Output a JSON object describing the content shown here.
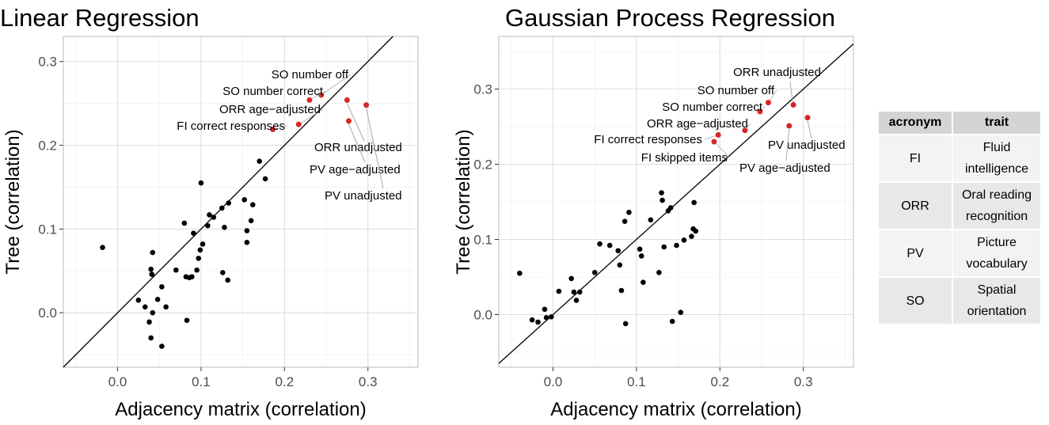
{
  "chart_data": [
    {
      "type": "scatter",
      "title": "Linear Regression",
      "xlabel": "Adjacency matrix (correlation)",
      "ylabel": "Tree (correlation)",
      "xlim": [
        -0.065,
        0.36
      ],
      "ylim": [
        -0.065,
        0.33
      ],
      "xticks": [
        "0.0",
        "0.1",
        "0.2",
        "0.3"
      ],
      "xtick_values": [
        0,
        0.1,
        0.2,
        0.3
      ],
      "yticks": [
        "0.0",
        "0.1",
        "0.2",
        "0.3"
      ],
      "ytick_values": [
        0,
        0.1,
        0.2,
        0.3
      ],
      "reference_line": "y = x",
      "points": [
        [
          -0.018,
          0.078
        ],
        [
          0.025,
          0.015
        ],
        [
          0.033,
          0.007
        ],
        [
          0.038,
          -0.011
        ],
        [
          0.04,
          0.052
        ],
        [
          0.041,
          0.046
        ],
        [
          0.04,
          -0.03
        ],
        [
          0.042,
          0.0
        ],
        [
          0.042,
          0.072
        ],
        [
          0.048,
          0.016
        ],
        [
          0.053,
          0.031
        ],
        [
          0.053,
          -0.04
        ],
        [
          0.058,
          0.007
        ],
        [
          0.07,
          0.051
        ],
        [
          0.08,
          0.107
        ],
        [
          0.082,
          0.043
        ],
        [
          0.083,
          -0.009
        ],
        [
          0.086,
          0.042
        ],
        [
          0.089,
          0.043
        ],
        [
          0.091,
          0.095
        ],
        [
          0.095,
          0.051
        ],
        [
          0.097,
          0.065
        ],
        [
          0.099,
          0.075
        ],
        [
          0.1,
          0.155
        ],
        [
          0.102,
          0.082
        ],
        [
          0.108,
          0.104
        ],
        [
          0.11,
          0.117
        ],
        [
          0.115,
          0.114
        ],
        [
          0.125,
          0.125
        ],
        [
          0.126,
          0.048
        ],
        [
          0.128,
          0.102
        ],
        [
          0.132,
          0.039
        ],
        [
          0.133,
          0.131
        ],
        [
          0.152,
          0.135
        ],
        [
          0.155,
          0.098
        ],
        [
          0.155,
          0.084
        ],
        [
          0.16,
          0.11
        ],
        [
          0.162,
          0.129
        ],
        [
          0.17,
          0.181
        ],
        [
          0.177,
          0.16
        ]
      ],
      "highlight_color": "#d62728",
      "highlighted": [
        {
          "label": "SO number off",
          "x": 0.244,
          "y": 0.26
        },
        {
          "label": "SO number correct",
          "x": 0.23,
          "y": 0.254
        },
        {
          "label": "ORR age−adjusted",
          "x": 0.217,
          "y": 0.225
        },
        {
          "label": "FI correct responses",
          "x": 0.186,
          "y": 0.219
        },
        {
          "label": "ORR unadjusted",
          "x": 0.275,
          "y": 0.254
        },
        {
          "label": "PV age−adjusted",
          "x": 0.277,
          "y": 0.229
        },
        {
          "label": "PV unadjusted",
          "x": 0.298,
          "y": 0.248
        }
      ]
    },
    {
      "type": "scatter",
      "title": "Gaussian Process Regression",
      "xlabel": "Adjacency matrix (correlation)",
      "ylabel": "Tree (correlation)",
      "xlim": [
        -0.065,
        0.36
      ],
      "ylim": [
        -0.07,
        0.37
      ],
      "xticks": [
        "0.0",
        "0.1",
        "0.2",
        "0.3"
      ],
      "xtick_values": [
        0,
        0.1,
        0.2,
        0.3
      ],
      "yticks": [
        "0.0",
        "0.1",
        "0.2",
        "0.3"
      ],
      "ytick_values": [
        0,
        0.1,
        0.2,
        0.3
      ],
      "reference_line": "y = x",
      "points": [
        [
          -0.04,
          0.055
        ],
        [
          -0.025,
          -0.007
        ],
        [
          -0.018,
          -0.01
        ],
        [
          -0.01,
          0.007
        ],
        [
          -0.008,
          -0.004
        ],
        [
          -0.002,
          -0.003
        ],
        [
          0.007,
          0.031
        ],
        [
          0.022,
          0.048
        ],
        [
          0.025,
          0.03
        ],
        [
          0.028,
          0.019
        ],
        [
          0.032,
          0.03
        ],
        [
          0.05,
          0.056
        ],
        [
          0.056,
          0.094
        ],
        [
          0.068,
          0.092
        ],
        [
          0.078,
          0.085
        ],
        [
          0.08,
          0.066
        ],
        [
          0.082,
          0.032
        ],
        [
          0.086,
          0.124
        ],
        [
          0.087,
          -0.012
        ],
        [
          0.091,
          0.136
        ],
        [
          0.104,
          0.087
        ],
        [
          0.106,
          0.078
        ],
        [
          0.108,
          0.043
        ],
        [
          0.117,
          0.126
        ],
        [
          0.127,
          0.056
        ],
        [
          0.13,
          0.162
        ],
        [
          0.131,
          0.152
        ],
        [
          0.133,
          0.09
        ],
        [
          0.138,
          0.138
        ],
        [
          0.141,
          0.142
        ],
        [
          0.143,
          -0.009
        ],
        [
          0.148,
          0.092
        ],
        [
          0.153,
          0.003
        ],
        [
          0.157,
          0.099
        ],
        [
          0.166,
          0.104
        ],
        [
          0.168,
          0.114
        ],
        [
          0.169,
          0.149
        ],
        [
          0.171,
          0.111
        ]
      ],
      "highlight_color": "#d62728",
      "highlighted": [
        {
          "label": "ORR unadjusted",
          "x": 0.288,
          "y": 0.279
        },
        {
          "label": "SO number off",
          "x": 0.258,
          "y": 0.282
        },
        {
          "label": "SO number correct",
          "x": 0.248,
          "y": 0.27
        },
        {
          "label": "ORR age−adjusted",
          "x": 0.23,
          "y": 0.245
        },
        {
          "label": "FI correct responses",
          "x": 0.198,
          "y": 0.239
        },
        {
          "label": "FI skipped items",
          "x": 0.193,
          "y": 0.23
        },
        {
          "label": "PV unadjusted",
          "x": 0.305,
          "y": 0.262
        },
        {
          "label": "PV age−adjusted",
          "x": 0.283,
          "y": 0.251
        }
      ]
    }
  ],
  "legend_table": {
    "headers": [
      "acronym",
      "trait"
    ],
    "rows": [
      {
        "acronym": "FI",
        "trait_line1": "Fluid",
        "trait_line2": "intelligence"
      },
      {
        "acronym": "ORR",
        "trait_line1": "Oral reading",
        "trait_line2": "recognition"
      },
      {
        "acronym": "PV",
        "trait_line1": "Picture",
        "trait_line2": "vocabulary"
      },
      {
        "acronym": "SO",
        "trait_line1": "Spatial",
        "trait_line2": "orientation"
      }
    ]
  }
}
